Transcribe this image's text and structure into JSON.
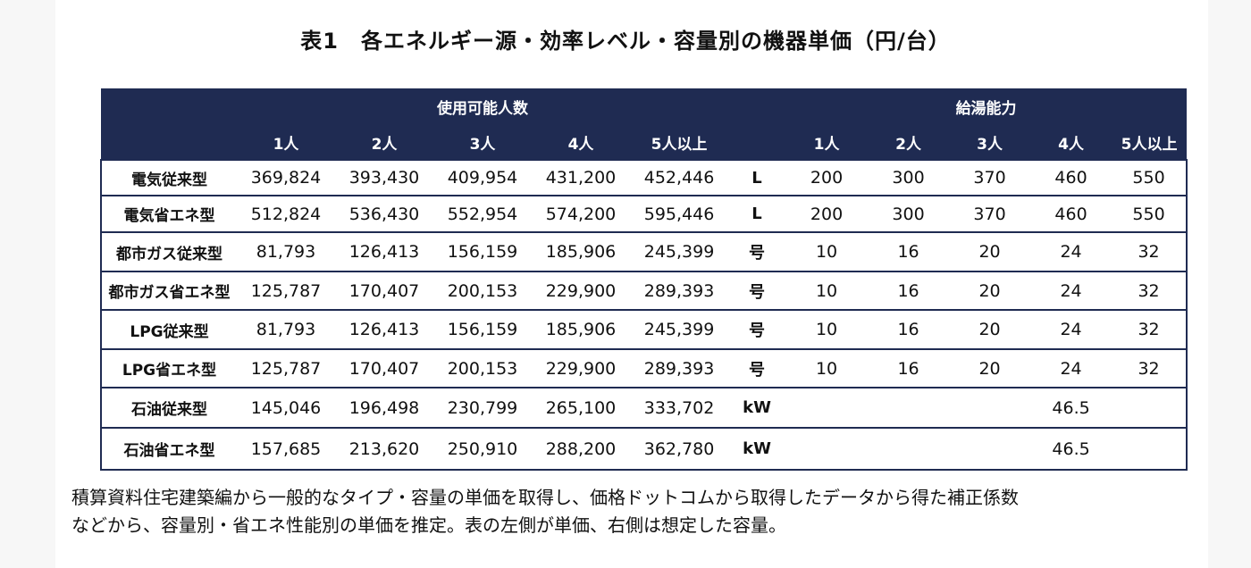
{
  "title": "表1　各エネルギー源・効率レベル・容量別の機器単価（円/台）",
  "table": {
    "group_headers": {
      "usage": "使用可能人数",
      "capacity": "給湯能力"
    },
    "sub_headers": [
      "1人",
      "2人",
      "3人",
      "4人",
      "5人以上",
      "1人",
      "2人",
      "3人",
      "4人",
      "5人以上"
    ],
    "rows": [
      {
        "label": "電気従来型",
        "prices": [
          "369,824",
          "393,430",
          "409,954",
          "431,200",
          "452,446"
        ],
        "unit": "L",
        "capacities": [
          "200",
          "300",
          "370",
          "460",
          "550"
        ]
      },
      {
        "label": "電気省エネ型",
        "prices": [
          "512,824",
          "536,430",
          "552,954",
          "574,200",
          "595,446"
        ],
        "unit": "L",
        "capacities": [
          "200",
          "300",
          "370",
          "460",
          "550"
        ]
      },
      {
        "label": "都市ガス従来型",
        "prices": [
          "81,793",
          "126,413",
          "156,159",
          "185,906",
          "245,399"
        ],
        "unit": "号",
        "capacities": [
          "10",
          "16",
          "20",
          "24",
          "32"
        ]
      },
      {
        "label": "都市ガス省エネ型",
        "prices": [
          "125,787",
          "170,407",
          "200,153",
          "229,900",
          "289,393"
        ],
        "unit": "号",
        "capacities": [
          "10",
          "16",
          "20",
          "24",
          "32"
        ]
      },
      {
        "label": "LPG従来型",
        "prices": [
          "81,793",
          "126,413",
          "156,159",
          "185,906",
          "245,399"
        ],
        "unit": "号",
        "capacities": [
          "10",
          "16",
          "20",
          "24",
          "32"
        ]
      },
      {
        "label": "LPG省エネ型",
        "prices": [
          "125,787",
          "170,407",
          "200,153",
          "229,900",
          "289,393"
        ],
        "unit": "号",
        "capacities": [
          "10",
          "16",
          "20",
          "24",
          "32"
        ]
      },
      {
        "label": "石油従来型",
        "prices": [
          "145,046",
          "196,498",
          "230,799",
          "265,100",
          "333,702"
        ],
        "unit": "kW",
        "capacities": [
          "",
          "",
          "",
          "46.5",
          ""
        ]
      },
      {
        "label": "石油省エネ型",
        "prices": [
          "157,685",
          "213,620",
          "250,910",
          "288,200",
          "362,780"
        ],
        "unit": "kW",
        "capacities": [
          "",
          "",
          "",
          "46.5",
          ""
        ]
      }
    ]
  },
  "note_line1": "積算資料住宅建築編から一般的なタイプ・容量の単価を取得し、価格ドットコムから取得したデータから得た補正係数",
  "note_line2": "などから、容量別・省エネ性能別の単価を推定。表の左側が単価、右側は想定した容量。",
  "colors": {
    "header_bg": "#1f2b52",
    "header_text": "#ffffff"
  }
}
